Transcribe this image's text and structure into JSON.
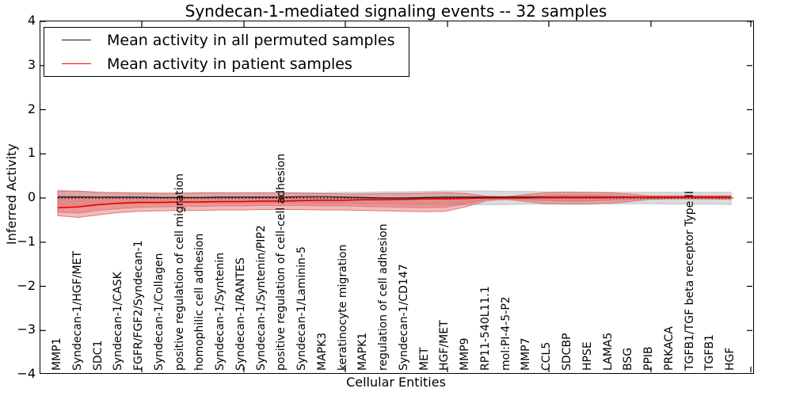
{
  "title": "Syndecan-1-mediated signaling events -- 32 samples",
  "axes": {
    "xlabel": "Cellular Entities",
    "ylabel": "Inferred Activity",
    "ytick_labels": [
      "4",
      "3",
      "2",
      "1",
      "0",
      "−1",
      "−2",
      "−3",
      "−4"
    ]
  },
  "legend": {
    "position": "upper left",
    "items": [
      {
        "label": "Mean activity in all permuted samples",
        "color": "#1a1a1a"
      },
      {
        "label": "Mean activity in patient samples",
        "color": "#ff0000"
      }
    ]
  },
  "colors": {
    "permuted_line": "#1a1a1a",
    "patient_line": "#e60000",
    "patient_band": "#e36868",
    "patient_band_edge": "#d95f5f",
    "permuted_band": "#999999",
    "permuted_band_edge": "#b3b3b3",
    "spine": "#000000"
  },
  "chart_data": {
    "type": "line",
    "title": "Syndecan-1-mediated signaling events -- 32 samples",
    "xlabel": "Cellular Entities",
    "ylabel": "Inferred Activity",
    "ylim": [
      -4,
      4
    ],
    "yticks": [
      4,
      3,
      2,
      1,
      0,
      -1,
      -2,
      -3,
      -4
    ],
    "grid": false,
    "legend_position": "upper left",
    "zero_line": "dotted",
    "categories": [
      "MMP1",
      "Syndecan-1/HGF/MET",
      "SDC1",
      "Syndecan-1/CASK",
      "FGFR/FGF2/Syndecan-1",
      "Syndecan-1/Collagen",
      "positive regulation of cell migration",
      "homophilic cell adhesion",
      "Syndecan-1/Syntenin",
      "Syndecan-1/RANTES",
      "Syndecan-1/Syntenin/PIP2",
      "positive regulation of cell-cell adhesion",
      "Syndecan-1/Laminin-5",
      "MAPK3",
      "keratinocyte migration",
      "MAPK1",
      "regulation of cell adhesion",
      "Syndecan-1/CD147",
      "MET",
      "HGF/MET",
      "MMP9",
      "RP11-540L11.1",
      "mol:PI-4-5-P2",
      "MMP7",
      "CCL5",
      "SDCBP",
      "HPSE",
      "LAMA5",
      "BSG",
      "PPIB",
      "PRKACA",
      "TGFB1/TGF beta receptor Type II",
      "TGFB1",
      "HGF"
    ],
    "series": [
      {
        "name": "Mean activity in all permuted samples",
        "values": [
          0.02,
          0.02,
          0.02,
          0.02,
          0.02,
          0.01,
          0.01,
          0.01,
          0.02,
          0.02,
          0.02,
          0.02,
          0.03,
          0.03,
          0.02,
          0.01,
          0.0,
          0.0,
          0.01,
          0.02,
          0.02,
          0.02,
          0.02,
          0.02,
          0.02,
          0.02,
          0.02,
          0.02,
          0.02,
          0.02,
          0.02,
          0.02,
          0.02,
          0.02
        ]
      },
      {
        "name": "Mean activity in patient samples",
        "values": [
          -0.22,
          -0.2,
          -0.15,
          -0.12,
          -0.1,
          -0.1,
          -0.09,
          -0.09,
          -0.08,
          -0.08,
          -0.07,
          -0.07,
          -0.06,
          -0.05,
          -0.05,
          -0.04,
          -0.04,
          -0.03,
          -0.02,
          -0.02,
          -0.01,
          0.0,
          0.0,
          0.0,
          0.01,
          0.01,
          0.01,
          0.01,
          0.02,
          0.02,
          0.02,
          0.02,
          0.02,
          0.02
        ]
      }
    ],
    "bands": [
      {
        "name": "permuted-samples-range",
        "upper": [
          0.18,
          0.15,
          0.13,
          0.12,
          0.12,
          0.11,
          0.11,
          0.11,
          0.11,
          0.11,
          0.11,
          0.12,
          0.12,
          0.12,
          0.13,
          0.13,
          0.14,
          0.14,
          0.15,
          0.16,
          0.16,
          0.16,
          0.15,
          0.15,
          0.14,
          0.14,
          0.13,
          0.13,
          0.13,
          0.13,
          0.13,
          0.13,
          0.13,
          0.13
        ],
        "lower": [
          -0.18,
          -0.16,
          -0.14,
          -0.13,
          -0.12,
          -0.12,
          -0.11,
          -0.11,
          -0.11,
          -0.11,
          -0.11,
          -0.11,
          -0.12,
          -0.12,
          -0.12,
          -0.13,
          -0.13,
          -0.14,
          -0.14,
          -0.15,
          -0.15,
          -0.15,
          -0.15,
          -0.14,
          -0.14,
          -0.13,
          -0.13,
          -0.13,
          -0.13,
          -0.13,
          -0.14,
          -0.14,
          -0.14,
          -0.15
        ]
      },
      {
        "name": "patient-samples-outer-range",
        "upper": [
          0.15,
          0.16,
          0.13,
          0.12,
          0.11,
          0.11,
          0.11,
          0.12,
          0.12,
          0.12,
          0.12,
          0.12,
          0.11,
          0.1,
          0.09,
          0.09,
          0.1,
          0.1,
          0.11,
          0.12,
          0.1,
          0.04,
          0.03,
          0.08,
          0.12,
          0.13,
          0.13,
          0.12,
          0.09,
          0.05,
          0.05,
          0.05,
          0.05,
          0.05
        ],
        "lower": [
          -0.4,
          -0.44,
          -0.38,
          -0.33,
          -0.3,
          -0.29,
          -0.28,
          -0.28,
          -0.27,
          -0.27,
          -0.26,
          -0.26,
          -0.26,
          -0.27,
          -0.27,
          -0.28,
          -0.29,
          -0.3,
          -0.31,
          -0.3,
          -0.2,
          -0.06,
          -0.03,
          -0.08,
          -0.13,
          -0.14,
          -0.14,
          -0.12,
          -0.08,
          -0.03,
          -0.02,
          -0.02,
          -0.02,
          -0.03
        ]
      },
      {
        "name": "patient-samples-inner-range",
        "upper": [
          0.05,
          0.04,
          0.02,
          0.0,
          0.0,
          -0.01,
          -0.01,
          0.0,
          0.0,
          0.01,
          0.01,
          0.01,
          0.01,
          0.0,
          0.0,
          -0.01,
          -0.01,
          0.0,
          0.01,
          0.02,
          0.02,
          0.02,
          0.02,
          0.04,
          0.06,
          0.07,
          0.07,
          0.06,
          0.04,
          0.03,
          0.03,
          0.04,
          0.04,
          0.04
        ],
        "lower": [
          -0.32,
          -0.34,
          -0.28,
          -0.24,
          -0.21,
          -0.2,
          -0.19,
          -0.19,
          -0.18,
          -0.18,
          -0.17,
          -0.17,
          -0.17,
          -0.18,
          -0.18,
          -0.19,
          -0.2,
          -0.21,
          -0.22,
          -0.21,
          -0.13,
          -0.03,
          -0.02,
          -0.04,
          -0.06,
          -0.07,
          -0.07,
          -0.05,
          -0.03,
          -0.01,
          -0.01,
          -0.01,
          -0.01,
          -0.01
        ]
      }
    ]
  }
}
